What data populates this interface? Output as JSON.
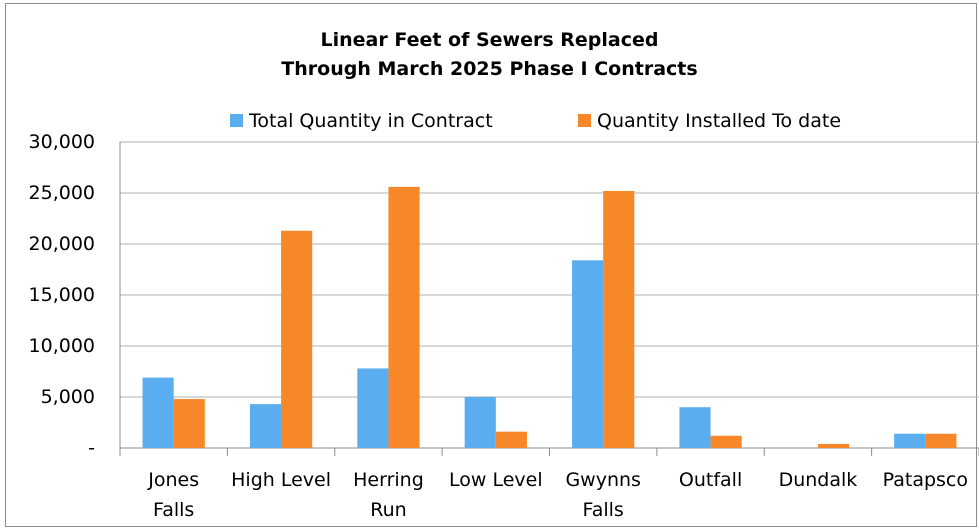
{
  "chart_data": {
    "type": "bar",
    "title": "Linear Feet of Sewers Replaced\nThrough March 2025 Phase I Contracts",
    "categories": [
      "Jones\nFalls",
      "High Level",
      "Herring\nRun",
      "Low Level",
      "Gwynns\nFalls",
      "Outfall",
      "Dundalk",
      "Patapsco"
    ],
    "series": [
      {
        "name": "Total Quantity in Contract",
        "color": "#5aaef0",
        "values": [
          6900,
          4300,
          7800,
          5000,
          18400,
          4000,
          0,
          1400
        ]
      },
      {
        "name": "Quantity Installed To date",
        "color": "#f7882a",
        "values": [
          4800,
          21300,
          25600,
          1600,
          25200,
          1200,
          400,
          1400
        ]
      }
    ],
    "ylim": [
      0,
      30000
    ],
    "yticks": [
      {
        "value": 0,
        "label": "-"
      },
      {
        "value": 5000,
        "label": "5,000"
      },
      {
        "value": 10000,
        "label": "10,000"
      },
      {
        "value": 15000,
        "label": "15,000"
      },
      {
        "value": 20000,
        "label": "20,000"
      },
      {
        "value": 25000,
        "label": "25,000"
      },
      {
        "value": 30000,
        "label": "30,000"
      }
    ],
    "grid": true,
    "legend": "top"
  }
}
